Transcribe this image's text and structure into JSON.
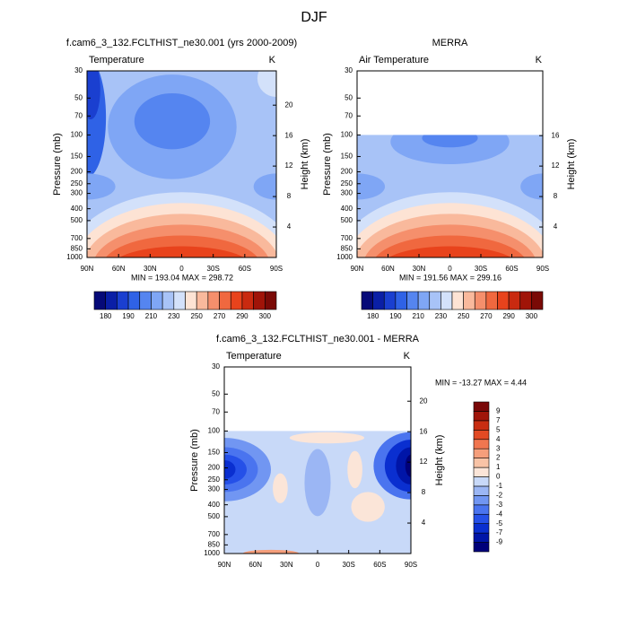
{
  "title": "DJF",
  "chart_data": [
    {
      "type": "contour",
      "title": "f.cam6_3_132.FCLTHIST_ne30.001 (yrs 2000-2009)",
      "subtitle": "Temperature",
      "units": "K",
      "ylabel": "Pressure (mb)",
      "y2label": "Height (km)",
      "stats": "MIN = 193.04  MAX = 298.72",
      "xlim": [
        90,
        -90
      ],
      "xticks": [
        {
          "value": 90,
          "label": "90N"
        },
        {
          "value": 60,
          "label": "60N"
        },
        {
          "value": 30,
          "label": "30N"
        },
        0,
        {
          "value": -30,
          "label": "30S"
        },
        {
          "value": -60,
          "label": "60S"
        },
        {
          "value": -90,
          "label": "90S"
        }
      ],
      "ylim": [
        1000,
        30
      ],
      "ylog": true,
      "yticks": [
        30,
        50,
        70,
        100,
        150,
        200,
        250,
        300,
        400,
        500,
        700,
        850,
        1000
      ],
      "y2lim": [
        0,
        24.5
      ],
      "y2ticks": [
        4,
        8,
        12,
        16,
        20
      ],
      "colorbar": {
        "orientation": "horizontal",
        "colors": [
          "#060a78",
          "#0a1fa6",
          "#1a3fd0",
          "#2f62e6",
          "#5585f0",
          "#7fa6f5",
          "#a8c3f7",
          "#d3e1fa",
          "#fde3d4",
          "#f9b99c",
          "#f58f6c",
          "#f0683f",
          "#e8431c",
          "#c92a10",
          "#a01408",
          "#7a0a06"
        ],
        "labels": [
          180,
          190,
          210,
          230,
          250,
          270,
          290,
          300
        ]
      }
    },
    {
      "type": "contour",
      "title": "MERRA",
      "subtitle": "Air Temperature",
      "units": "K",
      "ylabel": "Pressure (mb)",
      "y2label": "Height (km)",
      "stats": "MIN = 191.56  MAX = 299.16",
      "xlim": [
        90,
        -90
      ],
      "xticks": [
        {
          "value": 90,
          "label": "90N"
        },
        {
          "value": 60,
          "label": "60N"
        },
        {
          "value": 30,
          "label": "30N"
        },
        0,
        {
          "value": -30,
          "label": "30S"
        },
        {
          "value": -60,
          "label": "60S"
        },
        {
          "value": -90,
          "label": "90S"
        }
      ],
      "ylim": [
        1000,
        30
      ],
      "ylog": true,
      "yticks": [
        30,
        50,
        70,
        100,
        150,
        200,
        250,
        300,
        400,
        500,
        700,
        850,
        1000
      ],
      "y2lim": [
        0,
        24.5
      ],
      "y2ticks": [
        4,
        8,
        12,
        16
      ],
      "colorbar": {
        "orientation": "horizontal",
        "colors": [
          "#060a78",
          "#0a1fa6",
          "#1a3fd0",
          "#2f62e6",
          "#5585f0",
          "#7fa6f5",
          "#a8c3f7",
          "#d3e1fa",
          "#fde3d4",
          "#f9b99c",
          "#f58f6c",
          "#f0683f",
          "#e8431c",
          "#c92a10",
          "#a01408",
          "#7a0a06"
        ],
        "labels": [
          180,
          190,
          210,
          230,
          250,
          270,
          290,
          300
        ]
      }
    },
    {
      "type": "contour",
      "title": "f.cam6_3_132.FCLTHIST_ne30.001 - MERRA",
      "subtitle": "Temperature",
      "units": "K",
      "ylabel": "Pressure (mb)",
      "y2label": "Height (km)",
      "stats": "MIN = -13.27  MAX =   4.44",
      "xlim": [
        90,
        -90
      ],
      "xticks": [
        {
          "value": 90,
          "label": "90N"
        },
        {
          "value": 60,
          "label": "60N"
        },
        {
          "value": 30,
          "label": "30N"
        },
        0,
        {
          "value": -30,
          "label": "30S"
        },
        {
          "value": -60,
          "label": "60S"
        },
        {
          "value": -90,
          "label": "90S"
        }
      ],
      "ylim": [
        1000,
        30
      ],
      "ylog": true,
      "yticks": [
        30,
        50,
        70,
        100,
        150,
        200,
        250,
        300,
        400,
        500,
        700,
        850,
        1000
      ],
      "y2lim": [
        0,
        24.5
      ],
      "y2ticks": [
        4,
        8,
        12,
        16,
        20
      ],
      "colorbar": {
        "orientation": "vertical",
        "colors": [
          "#00007a",
          "#0015a8",
          "#0a2fd0",
          "#2550e8",
          "#4a74ef",
          "#7196f2",
          "#9bb6f4",
          "#c8d9f8",
          "#fbe5d8",
          "#f8c3a6",
          "#f59e7b",
          "#f07650",
          "#e24a24",
          "#c82d12",
          "#a0160a",
          "#7a0808"
        ],
        "labels": [
          -9,
          -7,
          -5,
          -4,
          -3,
          -2,
          -1,
          0,
          1,
          2,
          3,
          4,
          5,
          7,
          9
        ]
      }
    }
  ]
}
